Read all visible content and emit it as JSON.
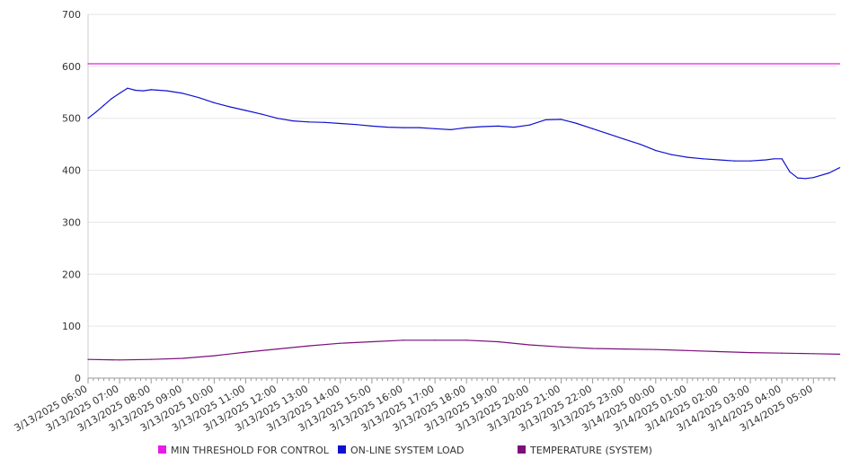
{
  "chart_data": {
    "type": "line",
    "title": "",
    "xlabel": "",
    "ylabel": "",
    "ylim": [
      0,
      700
    ],
    "y_ticks": [
      0,
      100,
      200,
      300,
      400,
      500,
      600,
      700
    ],
    "x_ticks": [
      "3/13/2025 06:00",
      "3/13/2025 07:00",
      "3/13/2025 08:00",
      "3/13/2025 09:00",
      "3/13/2025 10:00",
      "3/13/2025 11:00",
      "3/13/2025 12:00",
      "3/13/2025 13:00",
      "3/13/2025 14:00",
      "3/13/2025 15:00",
      "3/13/2025 16:00",
      "3/13/2025 17:00",
      "3/13/2025 18:00",
      "3/13/2025 19:00",
      "3/13/2025 20:00",
      "3/13/2025 21:00",
      "3/13/2025 22:00",
      "3/13/2025 23:00",
      "3/14/2025 00:00",
      "3/14/2025 01:00",
      "3/14/2025 02:00",
      "3/14/2025 03:00",
      "3/14/2025 04:00",
      "3/14/2025 05:00"
    ],
    "grid": true,
    "legend_position": "bottom",
    "series": [
      {
        "name": "MIN THRESHOLD FOR CONTROL",
        "color": "#e81be8",
        "x": [
          "3/13/2025 06:00",
          "3/14/2025 05:50"
        ],
        "values": [
          605,
          605
        ]
      },
      {
        "name": "ON-LINE SYSTEM LOAD",
        "color": "#1010d0",
        "x": [
          "3/13/2025 06:00",
          "3/13/2025 06:15",
          "3/13/2025 06:30",
          "3/13/2025 06:45",
          "3/13/2025 07:00",
          "3/13/2025 07:15",
          "3/13/2025 07:30",
          "3/13/2025 07:45",
          "3/13/2025 08:00",
          "3/13/2025 08:30",
          "3/13/2025 09:00",
          "3/13/2025 09:30",
          "3/13/2025 10:00",
          "3/13/2025 10:30",
          "3/13/2025 11:00",
          "3/13/2025 11:30",
          "3/13/2025 12:00",
          "3/13/2025 12:30",
          "3/13/2025 13:00",
          "3/13/2025 13:30",
          "3/13/2025 14:00",
          "3/13/2025 14:30",
          "3/13/2025 15:00",
          "3/13/2025 15:30",
          "3/13/2025 16:00",
          "3/13/2025 16:30",
          "3/13/2025 17:00",
          "3/13/2025 17:30",
          "3/13/2025 18:00",
          "3/13/2025 18:30",
          "3/13/2025 19:00",
          "3/13/2025 19:30",
          "3/13/2025 20:00",
          "3/13/2025 20:30",
          "3/13/2025 21:00",
          "3/13/2025 21:30",
          "3/13/2025 22:00",
          "3/13/2025 22:30",
          "3/13/2025 23:00",
          "3/13/2025 23:30",
          "3/14/2025 00:00",
          "3/14/2025 00:30",
          "3/14/2025 01:00",
          "3/14/2025 01:30",
          "3/14/2025 02:00",
          "3/14/2025 02:30",
          "3/14/2025 03:00",
          "3/14/2025 03:30",
          "3/14/2025 03:45",
          "3/14/2025 04:00",
          "3/14/2025 04:15",
          "3/14/2025 04:30",
          "3/14/2025 04:45",
          "3/14/2025 05:00",
          "3/14/2025 05:30",
          "3/14/2025 05:50"
        ],
        "values": [
          500,
          512,
          525,
          538,
          548,
          558,
          554,
          553,
          555,
          553,
          548,
          540,
          530,
          522,
          515,
          508,
          500,
          495,
          493,
          492,
          490,
          488,
          485,
          483,
          482,
          482,
          480,
          478,
          482,
          484,
          485,
          483,
          487,
          497,
          498,
          490,
          480,
          470,
          460,
          450,
          438,
          430,
          425,
          422,
          420,
          418,
          418,
          420,
          422,
          422,
          397,
          385,
          384,
          386,
          395,
          405
        ]
      },
      {
        "name": "TEMPERATURE (SYSTEM)",
        "color": "#7b0f7b",
        "x": [
          "3/13/2025 06:00",
          "3/13/2025 07:00",
          "3/13/2025 08:00",
          "3/13/2025 09:00",
          "3/13/2025 10:00",
          "3/13/2025 11:00",
          "3/13/2025 12:00",
          "3/13/2025 13:00",
          "3/13/2025 14:00",
          "3/13/2025 15:00",
          "3/13/2025 16:00",
          "3/13/2025 17:00",
          "3/13/2025 18:00",
          "3/13/2025 19:00",
          "3/13/2025 20:00",
          "3/13/2025 21:00",
          "3/13/2025 22:00",
          "3/13/2025 23:00",
          "3/14/2025 00:00",
          "3/14/2025 01:00",
          "3/14/2025 02:00",
          "3/14/2025 03:00",
          "3/14/2025 04:00",
          "3/14/2025 05:00",
          "3/14/2025 05:50"
        ],
        "values": [
          36,
          35,
          36,
          38,
          43,
          50,
          56,
          62,
          67,
          70,
          73,
          73,
          73,
          70,
          64,
          60,
          57,
          56,
          55,
          53,
          51,
          49,
          48,
          47,
          46
        ]
      }
    ]
  }
}
